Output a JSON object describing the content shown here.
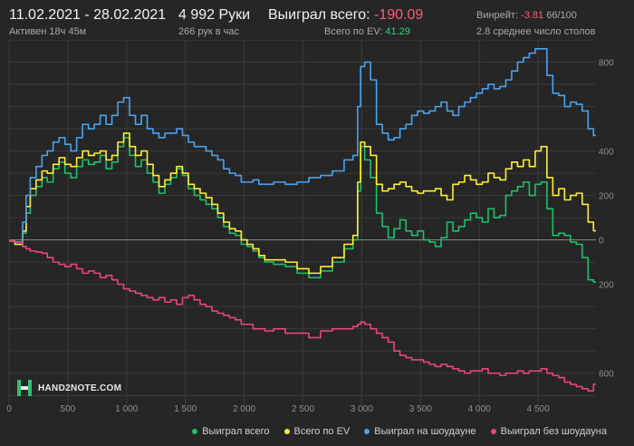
{
  "header": {
    "date_range": "11.02.2021 - 28.02.2021",
    "active_time": "Активен 18ч 45м",
    "hands": "4 992 Руки",
    "hands_per_hour": "266 рук в час",
    "won_total_label": "Выиграл всего:",
    "won_total_value": "-190.09",
    "ev_total_label": "Всего по EV:",
    "ev_total_value": "41.29",
    "winrate_label": "Винрейт:",
    "winrate_value": "-3.81",
    "winrate_unit": "66/100",
    "tables_avg": "2.8 среднее число столов"
  },
  "logo": {
    "text": "HAND2NOTE.COM"
  },
  "colors": {
    "won": "#1fbf6b",
    "ev": "#ffee33",
    "showdown": "#4aa3ef",
    "nonshowdown": "#e8457e",
    "background": "#262626",
    "grid": "#3a3a3a",
    "zero_line": "#8a8a8a"
  },
  "chart_data": {
    "type": "line",
    "xlim": [
      0,
      4992
    ],
    "ylim": [
      -740,
      900
    ],
    "x_ticks": [
      0,
      500,
      1000,
      1500,
      2000,
      2500,
      3000,
      3500,
      4000,
      4500
    ],
    "x_tick_labels": [
      "0",
      "500",
      "1 000",
      "1 500",
      "2 000",
      "2 500",
      "3 000",
      "3 500",
      "4 000",
      "4 500"
    ],
    "y_ticks": [
      800,
      400,
      200,
      0,
      -200,
      -600
    ],
    "y_tick_labels": [
      "800",
      "400",
      "200",
      "0",
      "200",
      "600"
    ],
    "grid": true,
    "legend_position": "bottom-right",
    "series": [
      {
        "name": "Выиграл всего",
        "color": "#1fbf6b",
        "x": [
          0,
          100,
          130,
          160,
          200,
          260,
          300,
          350,
          400,
          450,
          500,
          550,
          600,
          650,
          700,
          750,
          800,
          850,
          900,
          950,
          1000,
          1050,
          1100,
          1150,
          1200,
          1250,
          1300,
          1350,
          1400,
          1450,
          1500,
          1550,
          1600,
          1650,
          1700,
          1750,
          1800,
          1850,
          1900,
          1950,
          2000,
          2050,
          2100,
          2150,
          2200,
          2300,
          2400,
          2500,
          2600,
          2700,
          2800,
          2900,
          2950,
          2980,
          3000,
          3050,
          3100,
          3150,
          3200,
          3250,
          3300,
          3350,
          3400,
          3450,
          3500,
          3550,
          3600,
          3650,
          3700,
          3750,
          3800,
          3850,
          3900,
          3950,
          4000,
          4050,
          4100,
          4150,
          4200,
          4250,
          4300,
          4350,
          4400,
          4450,
          4500,
          4550,
          4600,
          4650,
          4700,
          4750,
          4800,
          4850,
          4900,
          4950,
          4992
        ],
        "y": [
          -5,
          -20,
          30,
          120,
          200,
          240,
          280,
          260,
          320,
          350,
          300,
          280,
          330,
          360,
          340,
          350,
          380,
          320,
          350,
          420,
          460,
          380,
          330,
          360,
          300,
          260,
          210,
          250,
          280,
          320,
          290,
          230,
          200,
          180,
          160,
          140,
          100,
          60,
          30,
          20,
          -20,
          -30,
          -50,
          -80,
          -100,
          -110,
          -120,
          -150,
          -170,
          -140,
          -100,
          -40,
          0,
          220,
          420,
          360,
          280,
          120,
          60,
          10,
          50,
          90,
          40,
          20,
          40,
          0,
          -10,
          -30,
          10,
          80,
          40,
          60,
          90,
          120,
          100,
          80,
          140,
          100,
          110,
          200,
          220,
          240,
          260,
          200,
          250,
          260,
          140,
          20,
          30,
          20,
          -10,
          -20,
          -80,
          -180,
          -190
        ]
      },
      {
        "name": "Всего по EV",
        "color": "#ffee33",
        "x": [
          0,
          100,
          130,
          160,
          200,
          260,
          300,
          350,
          400,
          450,
          500,
          550,
          600,
          650,
          700,
          750,
          800,
          850,
          900,
          950,
          1000,
          1050,
          1100,
          1150,
          1200,
          1250,
          1300,
          1350,
          1400,
          1450,
          1500,
          1550,
          1600,
          1650,
          1700,
          1750,
          1800,
          1850,
          1900,
          1950,
          2000,
          2050,
          2100,
          2150,
          2200,
          2300,
          2400,
          2500,
          2600,
          2700,
          2800,
          2900,
          2950,
          2980,
          3000,
          3050,
          3100,
          3150,
          3200,
          3250,
          3300,
          3350,
          3400,
          3450,
          3500,
          3550,
          3600,
          3650,
          3700,
          3750,
          3800,
          3850,
          3900,
          3950,
          4000,
          4050,
          4100,
          4150,
          4200,
          4250,
          4300,
          4350,
          4400,
          4450,
          4500,
          4550,
          4600,
          4650,
          4700,
          4750,
          4800,
          4850,
          4900,
          4950,
          4992
        ],
        "y": [
          -5,
          -20,
          40,
          150,
          230,
          270,
          310,
          300,
          340,
          370,
          340,
          330,
          370,
          400,
          380,
          390,
          400,
          360,
          380,
          440,
          480,
          420,
          380,
          400,
          340,
          290,
          240,
          270,
          300,
          330,
          300,
          250,
          230,
          210,
          190,
          160,
          120,
          80,
          50,
          40,
          0,
          -20,
          -40,
          -70,
          -90,
          -90,
          -100,
          -130,
          -150,
          -120,
          -80,
          -20,
          20,
          260,
          440,
          420,
          380,
          250,
          220,
          230,
          250,
          260,
          240,
          220,
          210,
          220,
          220,
          230,
          200,
          180,
          250,
          260,
          290,
          270,
          250,
          260,
          300,
          280,
          270,
          320,
          350,
          330,
          360,
          330,
          400,
          420,
          280,
          200,
          230,
          180,
          200,
          210,
          160,
          80,
          41
        ]
      },
      {
        "name": "Выиграл на шоудауне",
        "color": "#4aa3ef",
        "x": [
          0,
          100,
          130,
          160,
          200,
          260,
          300,
          350,
          400,
          450,
          500,
          550,
          600,
          650,
          700,
          750,
          800,
          850,
          900,
          950,
          1000,
          1050,
          1100,
          1150,
          1200,
          1250,
          1300,
          1350,
          1400,
          1450,
          1500,
          1550,
          1600,
          1650,
          1700,
          1750,
          1800,
          1850,
          1900,
          1950,
          2000,
          2050,
          2100,
          2150,
          2200,
          2300,
          2400,
          2500,
          2600,
          2700,
          2800,
          2900,
          2950,
          2980,
          3000,
          3050,
          3100,
          3150,
          3200,
          3250,
          3300,
          3350,
          3400,
          3450,
          3500,
          3550,
          3600,
          3650,
          3700,
          3750,
          3800,
          3850,
          3900,
          3950,
          4000,
          4050,
          4100,
          4150,
          4200,
          4250,
          4300,
          4350,
          4400,
          4450,
          4500,
          4550,
          4600,
          4650,
          4700,
          4750,
          4800,
          4850,
          4900,
          4950,
          4992
        ],
        "y": [
          -5,
          -10,
          80,
          200,
          280,
          330,
          380,
          400,
          440,
          460,
          430,
          400,
          460,
          520,
          500,
          520,
          560,
          520,
          560,
          620,
          640,
          560,
          520,
          560,
          500,
          480,
          460,
          480,
          480,
          500,
          470,
          440,
          420,
          420,
          400,
          380,
          360,
          320,
          300,
          290,
          260,
          260,
          270,
          250,
          250,
          260,
          250,
          260,
          280,
          290,
          310,
          360,
          380,
          600,
          780,
          800,
          720,
          520,
          480,
          450,
          460,
          500,
          520,
          560,
          580,
          570,
          580,
          600,
          620,
          580,
          560,
          600,
          620,
          640,
          660,
          680,
          700,
          680,
          690,
          720,
          760,
          800,
          820,
          840,
          860,
          860,
          740,
          660,
          650,
          600,
          620,
          610,
          580,
          500,
          470
        ]
      },
      {
        "name": "Выиграл без шоудауна",
        "color": "#e8457e",
        "x": [
          0,
          100,
          130,
          160,
          200,
          260,
          300,
          350,
          400,
          450,
          500,
          550,
          600,
          650,
          700,
          750,
          800,
          850,
          900,
          950,
          1000,
          1050,
          1100,
          1150,
          1200,
          1250,
          1300,
          1350,
          1400,
          1450,
          1500,
          1550,
          1600,
          1650,
          1700,
          1750,
          1800,
          1850,
          1900,
          1950,
          2000,
          2050,
          2100,
          2150,
          2200,
          2300,
          2400,
          2500,
          2600,
          2700,
          2800,
          2900,
          2950,
          2980,
          3000,
          3050,
          3100,
          3150,
          3200,
          3250,
          3300,
          3350,
          3400,
          3450,
          3500,
          3550,
          3600,
          3650,
          3700,
          3750,
          3800,
          3850,
          3900,
          3950,
          4000,
          4050,
          4100,
          4150,
          4200,
          4250,
          4300,
          4350,
          4400,
          4450,
          4500,
          4550,
          4600,
          4650,
          4700,
          4750,
          4800,
          4850,
          4900,
          4950,
          4992
        ],
        "y": [
          -5,
          -10,
          -30,
          -40,
          -50,
          -55,
          -60,
          -80,
          -100,
          -110,
          -120,
          -110,
          -130,
          -150,
          -140,
          -150,
          -170,
          -160,
          -180,
          -200,
          -220,
          -230,
          -240,
          -250,
          -260,
          -270,
          -260,
          -280,
          -270,
          -290,
          -260,
          -250,
          -270,
          -290,
          -300,
          -320,
          -330,
          -340,
          -350,
          -360,
          -380,
          -380,
          -400,
          -400,
          -410,
          -400,
          -420,
          -420,
          -440,
          -410,
          -400,
          -400,
          -390,
          -380,
          -370,
          -380,
          -400,
          -420,
          -440,
          -460,
          -500,
          -520,
          -530,
          -540,
          -540,
          -550,
          -560,
          -570,
          -560,
          -570,
          -580,
          -590,
          -600,
          -590,
          -590,
          -580,
          -600,
          -600,
          -610,
          -600,
          -600,
          -590,
          -600,
          -590,
          -590,
          -580,
          -600,
          -610,
          -620,
          -640,
          -650,
          -660,
          -670,
          -680,
          -650
        ]
      }
    ]
  }
}
